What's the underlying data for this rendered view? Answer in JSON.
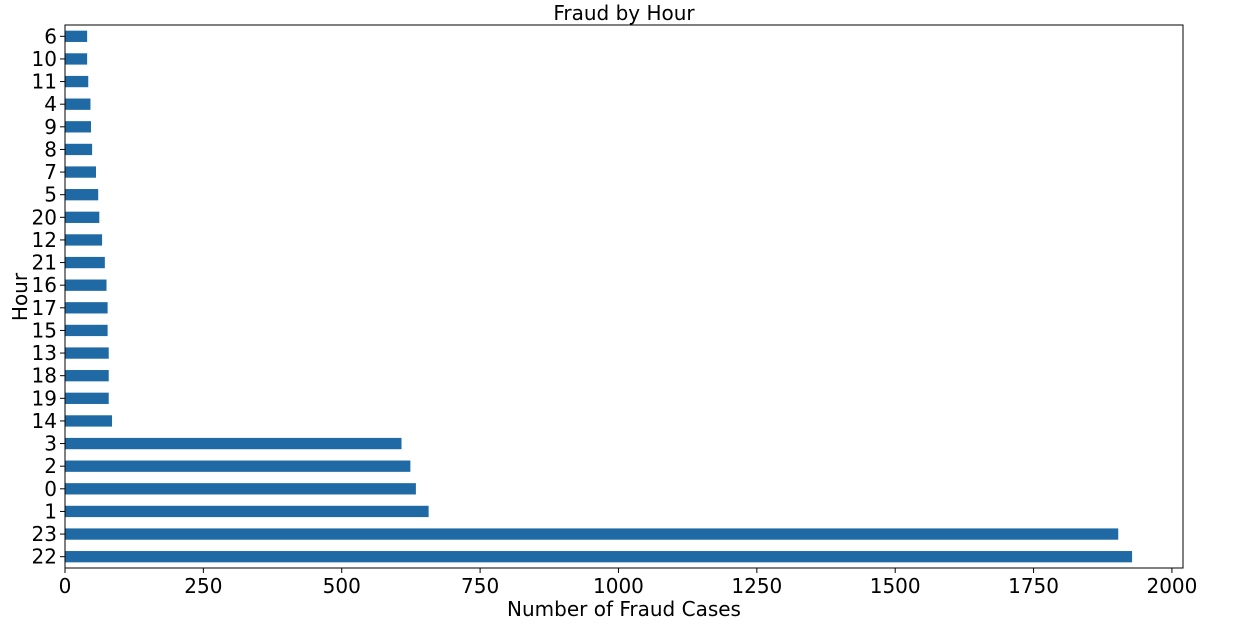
{
  "chart_data": {
    "type": "bar",
    "orientation": "horizontal",
    "title": "Fraud by Hour",
    "xlabel": "Number of Fraud Cases",
    "ylabel": "Hour",
    "xlim": [
      0,
      2020
    ],
    "xticks": [
      0,
      250,
      500,
      750,
      1000,
      1250,
      1500,
      1750,
      2000
    ],
    "bar_color": "#1f6aa5",
    "grid": false,
    "categories": [
      "6",
      "10",
      "11",
      "4",
      "9",
      "8",
      "7",
      "5",
      "20",
      "12",
      "21",
      "16",
      "17",
      "15",
      "13",
      "18",
      "19",
      "14",
      "3",
      "2",
      "0",
      "1",
      "23",
      "22"
    ],
    "values": [
      40,
      40,
      42,
      46,
      47,
      49,
      56,
      60,
      62,
      67,
      72,
      75,
      77,
      77,
      79,
      79,
      79,
      85,
      608,
      624,
      634,
      657,
      1903,
      1928
    ]
  }
}
